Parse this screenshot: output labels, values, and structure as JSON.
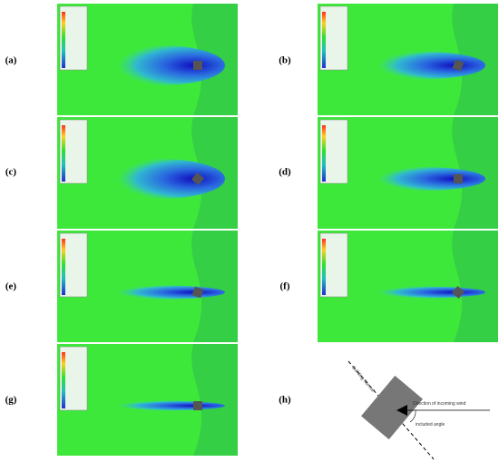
{
  "panels": [
    {
      "label": "(a)"
    },
    {
      "label": "(b)"
    },
    {
      "label": "(c)"
    },
    {
      "label": "(d)"
    },
    {
      "label": "(e)"
    },
    {
      "label": "(f)"
    },
    {
      "label": "(g)"
    },
    {
      "label": "(h)"
    }
  ],
  "diagram": {
    "building_normal": "Building Normal",
    "wind_direction": "Direction of incoming wind",
    "included_angle": "included angle"
  }
}
